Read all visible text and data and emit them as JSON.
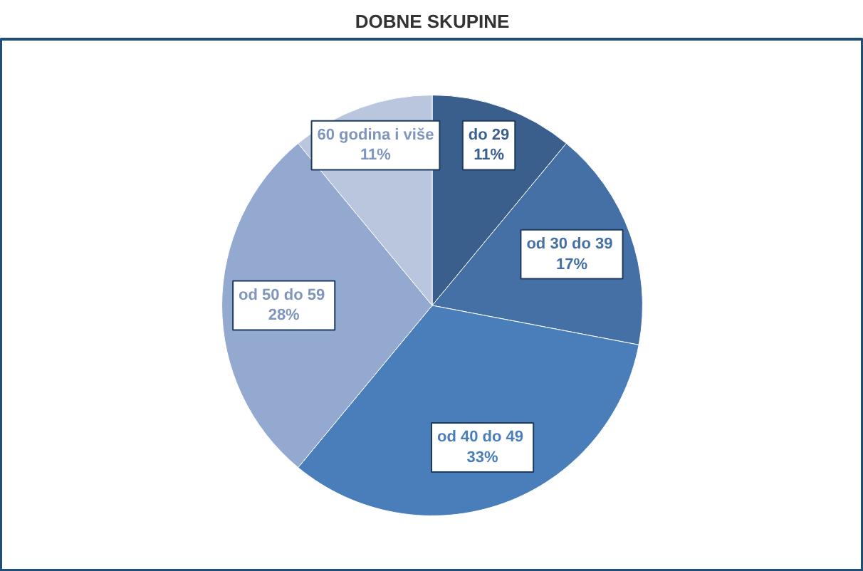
{
  "chart_data": {
    "type": "pie",
    "title": "DOBNE SKUPINE",
    "categories": [
      "do 29",
      "od 30  do 39",
      "od 40  do 49",
      "od 50  do 59",
      "60 godina i više"
    ],
    "values": [
      11,
      17,
      33,
      28,
      11
    ],
    "value_labels": [
      "11%",
      "17%",
      "33%",
      "28%",
      "11%"
    ],
    "colors": [
      "#3a5f8d",
      "#4470a5",
      "#4a7ebb",
      "#93a9cf",
      "#b9c6de"
    ]
  }
}
